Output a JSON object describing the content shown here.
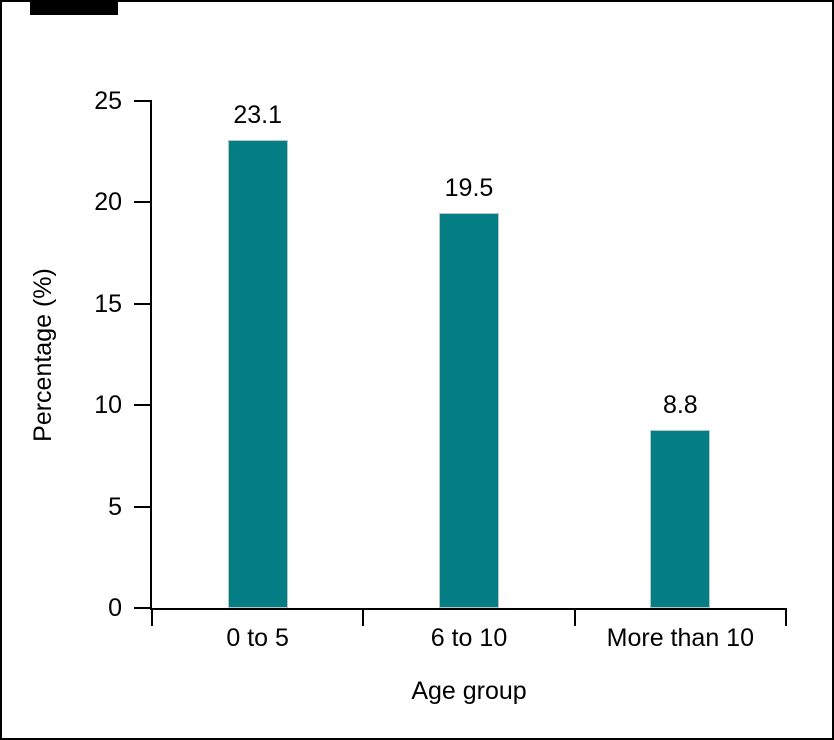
{
  "window": {
    "background_color": "#FFFFFF",
    "frame_color": "#000000",
    "top_left_bar_color": "#000000"
  },
  "chart_data": {
    "type": "bar",
    "categories": [
      "0 to 5",
      "6 to 10",
      "More than 10"
    ],
    "values": [
      23.1,
      19.5,
      8.8
    ],
    "data_labels": [
      "23.1",
      "19.5",
      "8.8"
    ],
    "title": "",
    "xlabel": "Age group",
    "ylabel": "Percentage (%)",
    "ylim": [
      0,
      25
    ],
    "yticks": [
      "0",
      "5",
      "10",
      "15",
      "20",
      "25"
    ],
    "grid": false,
    "legend": "none",
    "bar_color": "#057D84",
    "bar_border_color": "#B7C6C7",
    "axis_color": "#000000",
    "text_color": "#000000"
  }
}
